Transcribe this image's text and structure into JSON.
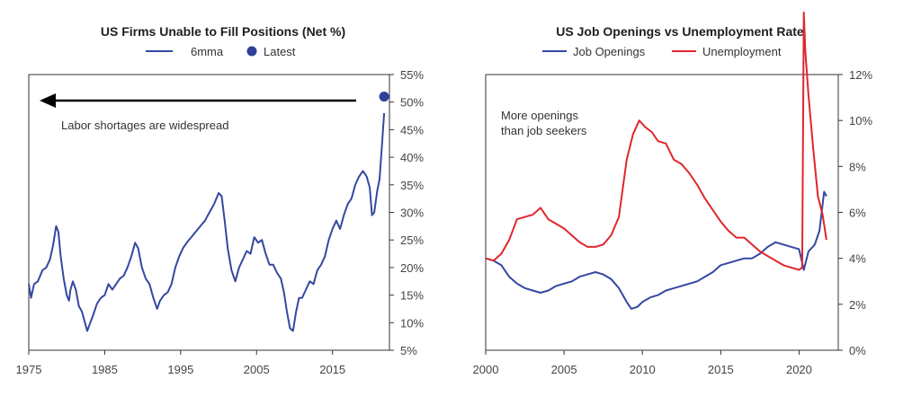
{
  "chart_data": [
    {
      "type": "line",
      "title": "US Firms Unable to Fill Positions (Net %)",
      "legend": [
        "6mma",
        "Latest"
      ],
      "legend_position": "top-center",
      "annotation": "Labor shortages are widespread",
      "xlim": [
        1975,
        2022.5
      ],
      "ylim": [
        5,
        55
      ],
      "y_axis_side": "right",
      "x_ticks": [
        "1975",
        "1985",
        "1995",
        "2005",
        "2015"
      ],
      "y_ticks": [
        "5%",
        "10%",
        "15%",
        "20%",
        "25%",
        "30%",
        "35%",
        "40%",
        "45%",
        "50%",
        "55%"
      ],
      "grid": false,
      "colors": {
        "6mma": "#3448a0",
        "Latest": "#2f3f9a"
      },
      "series": [
        {
          "name": "6mma",
          "x": [
            1975,
            1975.3,
            1975.7,
            1976.2,
            1976.8,
            1977.3,
            1977.8,
            1978.2,
            1978.6,
            1978.9,
            1979.2,
            1979.6,
            1980.0,
            1980.3,
            1980.5,
            1980.8,
            1981.2,
            1981.6,
            1982.0,
            1982.3,
            1982.7,
            1983.1,
            1983.5,
            1984.0,
            1984.5,
            1985.0,
            1985.5,
            1986.0,
            1986.5,
            1987.0,
            1987.5,
            1988.0,
            1988.5,
            1989.0,
            1989.4,
            1989.9,
            1990.4,
            1990.9,
            1991.4,
            1991.9,
            1992.3,
            1992.8,
            1993.3,
            1993.8,
            1994.3,
            1994.8,
            1995.3,
            1995.8,
            1996.4,
            1997.0,
            1997.6,
            1998.2,
            1998.8,
            1999.4,
            2000.0,
            2000.4,
            2000.8,
            2001.2,
            2001.7,
            2002.2,
            2002.7,
            2003.2,
            2003.7,
            2004.2,
            2004.7,
            2005.2,
            2005.7,
            2006.2,
            2006.7,
            2007.2,
            2007.7,
            2008.2,
            2008.6,
            2009.0,
            2009.4,
            2009.8,
            2010.2,
            2010.6,
            2011.0,
            2011.5,
            2012.0,
            2012.5,
            2013.0,
            2013.5,
            2014.0,
            2014.5,
            2015.0,
            2015.5,
            2016.0,
            2016.5,
            2017.0,
            2017.5,
            2018.0,
            2018.5,
            2019.0,
            2019.5,
            2019.9,
            2020.2,
            2020.5,
            2020.9,
            2021.2,
            2021.5,
            2021.8
          ],
          "y": [
            17,
            14.5,
            17,
            17.5,
            19.5,
            20,
            21.5,
            24,
            27.5,
            26.5,
            22,
            18,
            15,
            14,
            16,
            17.5,
            16,
            13,
            12,
            10.5,
            8.5,
            10,
            11.5,
            13.5,
            14.5,
            15,
            17,
            16,
            17,
            18,
            18.5,
            20,
            22,
            24.5,
            23.5,
            20,
            18,
            17,
            14.5,
            12.5,
            14,
            15,
            15.5,
            17,
            20,
            22,
            23.5,
            24.5,
            25.5,
            26.5,
            27.5,
            28.5,
            30,
            31.5,
            33.5,
            33,
            28.5,
            23.5,
            19.5,
            17.5,
            20,
            21.5,
            23,
            22.5,
            25.5,
            24.5,
            25,
            22.5,
            20.5,
            20.5,
            19,
            18,
            15.5,
            12,
            9,
            8.5,
            12,
            14.5,
            14.5,
            16,
            17.5,
            17,
            19.5,
            20.5,
            22,
            25,
            27,
            28.5,
            27,
            29.5,
            31.5,
            32.5,
            35,
            36.5,
            37.5,
            36.5,
            34.5,
            29.5,
            30,
            34,
            36,
            42,
            48
          ]
        },
        {
          "name": "Latest",
          "x": [
            2021.8
          ],
          "y": [
            51
          ]
        }
      ]
    },
    {
      "type": "line",
      "title": "US Job Openings vs Unemployment Rate",
      "legend": [
        "Job Openings",
        "Unemployment"
      ],
      "legend_position": "top-center",
      "annotation_lines": [
        "More openings",
        "than job seekers"
      ],
      "xlim": [
        2000,
        2022.5
      ],
      "ylim": [
        0,
        12
      ],
      "y_axis_side": "right",
      "x_ticks": [
        "2000",
        "2005",
        "2010",
        "2015",
        "2020"
      ],
      "y_ticks": [
        "0%",
        "2%",
        "4%",
        "6%",
        "8%",
        "10%",
        "12%"
      ],
      "grid": false,
      "colors": {
        "Job Openings": "#3448a0",
        "Unemployment": "#e0262d"
      },
      "series": [
        {
          "name": "Job Openings",
          "x": [
            2000,
            2000.5,
            2001.0,
            2001.5,
            2002.0,
            2002.5,
            2003.0,
            2003.5,
            2004.0,
            2004.5,
            2005.0,
            2005.5,
            2006.0,
            2006.5,
            2007.0,
            2007.5,
            2008.0,
            2008.5,
            2009.0,
            2009.3,
            2009.7,
            2010.0,
            2010.5,
            2011.0,
            2011.5,
            2012.0,
            2012.5,
            2013.0,
            2013.5,
            2014.0,
            2014.5,
            2015.0,
            2015.5,
            2016.0,
            2016.5,
            2017.0,
            2017.5,
            2018.0,
            2018.5,
            2019.0,
            2019.5,
            2020.0,
            2020.3,
            2020.6,
            2021.0,
            2021.3,
            2021.6,
            2021.75
          ],
          "y": [
            4.0,
            3.9,
            3.7,
            3.2,
            2.9,
            2.7,
            2.6,
            2.5,
            2.6,
            2.8,
            2.9,
            3.0,
            3.2,
            3.3,
            3.4,
            3.3,
            3.1,
            2.7,
            2.1,
            1.8,
            1.9,
            2.1,
            2.3,
            2.4,
            2.6,
            2.7,
            2.8,
            2.9,
            3.0,
            3.2,
            3.4,
            3.7,
            3.8,
            3.9,
            4.0,
            4.0,
            4.2,
            4.5,
            4.7,
            4.6,
            4.5,
            4.4,
            3.5,
            4.3,
            4.6,
            5.2,
            6.9,
            6.7
          ]
        },
        {
          "name": "Unemployment",
          "x": [
            2000,
            2000.5,
            2001.0,
            2001.5,
            2002.0,
            2002.5,
            2003.0,
            2003.5,
            2004.0,
            2004.5,
            2005.0,
            2005.5,
            2006.0,
            2006.5,
            2007.0,
            2007.5,
            2008.0,
            2008.5,
            2009.0,
            2009.4,
            2009.8,
            2010.2,
            2010.6,
            2011.0,
            2011.5,
            2012.0,
            2012.5,
            2013.0,
            2013.5,
            2014.0,
            2014.5,
            2015.0,
            2015.5,
            2016.0,
            2016.5,
            2017.0,
            2017.5,
            2018.0,
            2018.5,
            2019.0,
            2019.5,
            2020.0,
            2020.2,
            2020.3,
            2020.4,
            2020.6,
            2020.9,
            2021.2,
            2021.5,
            2021.75
          ],
          "y": [
            4.0,
            3.9,
            4.2,
            4.8,
            5.7,
            5.8,
            5.9,
            6.2,
            5.7,
            5.5,
            5.3,
            5.0,
            4.7,
            4.5,
            4.5,
            4.6,
            5.0,
            5.8,
            8.3,
            9.4,
            10.0,
            9.7,
            9.5,
            9.1,
            9.0,
            8.3,
            8.1,
            7.7,
            7.2,
            6.6,
            6.1,
            5.6,
            5.2,
            4.9,
            4.9,
            4.6,
            4.3,
            4.1,
            3.9,
            3.7,
            3.6,
            3.5,
            3.6,
            14.7,
            13.0,
            11.1,
            8.8,
            6.7,
            5.9,
            4.8
          ]
        }
      ]
    }
  ]
}
